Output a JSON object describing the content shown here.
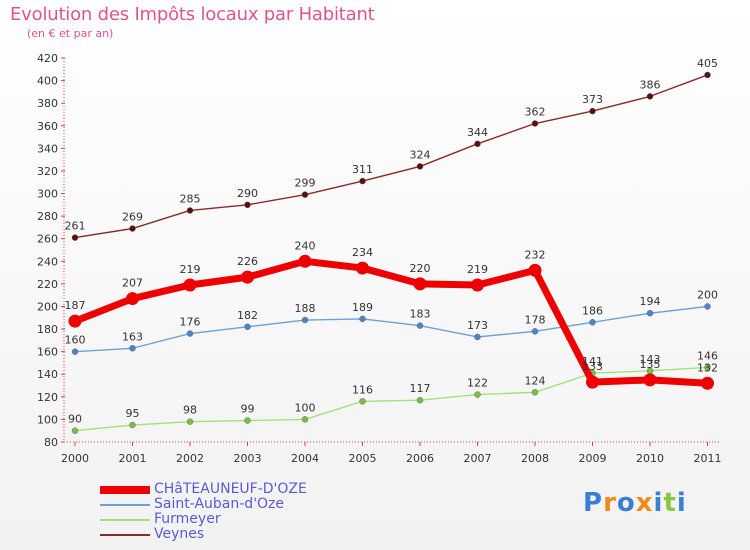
{
  "header": {
    "title": "Evolution des Impôts locaux par Habitant",
    "subtitle": "(en € et par an)"
  },
  "logo": {
    "text": "Proxiti",
    "colors": [
      "#3a7fd6",
      "#f08a1a",
      "#3a7fd6",
      "#f08a1a",
      "#3a7fd6",
      "#8cc63f",
      "#3a7fd6"
    ]
  },
  "chart_data": {
    "type": "line",
    "title": "Evolution des Impôts locaux par Habitant",
    "subtitle": "(en € et par an)",
    "x": [
      "2000",
      "2001",
      "2002",
      "2003",
      "2004",
      "2005",
      "2006",
      "2007",
      "2008",
      "2009",
      "2010",
      "2011"
    ],
    "ylim": [
      80,
      420
    ],
    "yticks": [
      80,
      100,
      120,
      140,
      160,
      180,
      200,
      220,
      240,
      260,
      280,
      300,
      320,
      340,
      360,
      380,
      400,
      420
    ],
    "grid": false,
    "legend_position": "bottom-left",
    "series": [
      {
        "name": "Veynes",
        "color": "#8b2a2a",
        "marker": "#5a1010",
        "values": [
          261,
          269,
          285,
          290,
          299,
          311,
          324,
          344,
          362,
          373,
          386,
          405
        ],
        "labels": [
          "261",
          "269",
          "285",
          "290",
          "299",
          "311",
          "324",
          "344",
          "362",
          "373",
          "386",
          "405"
        ]
      },
      {
        "name": "Saint-Auban-d'Oze",
        "color": "#6aa2d8",
        "marker": "#4a86c8",
        "values": [
          160,
          163,
          176,
          182,
          188,
          189,
          183,
          173,
          178,
          186,
          194,
          200
        ],
        "labels": [
          "160",
          "163",
          "176",
          "182",
          "188",
          "189",
          "183",
          "173",
          "178",
          "186",
          "194",
          "200"
        ]
      },
      {
        "name": "Furmeyer",
        "color": "#a6e07a",
        "marker": "#76c043",
        "values": [
          90,
          95,
          98,
          99,
          100,
          116,
          117,
          122,
          124,
          141,
          143,
          146
        ],
        "labels": [
          "90",
          "95",
          "98",
          "99",
          "100",
          "116",
          "117",
          "122",
          "124",
          "141",
          "143",
          "146"
        ]
      },
      {
        "name": "CHâTEAUNEUF-D'OZE",
        "color": "#ee0000",
        "marker": "#ee0000",
        "values": [
          187,
          207,
          219,
          226,
          240,
          234,
          220,
          219,
          232,
          133,
          135,
          132
        ],
        "labels": [
          "187",
          "207",
          "219",
          "226",
          "240",
          "234",
          "220",
          "219",
          "232",
          "133",
          "135",
          "132"
        ]
      }
    ]
  }
}
